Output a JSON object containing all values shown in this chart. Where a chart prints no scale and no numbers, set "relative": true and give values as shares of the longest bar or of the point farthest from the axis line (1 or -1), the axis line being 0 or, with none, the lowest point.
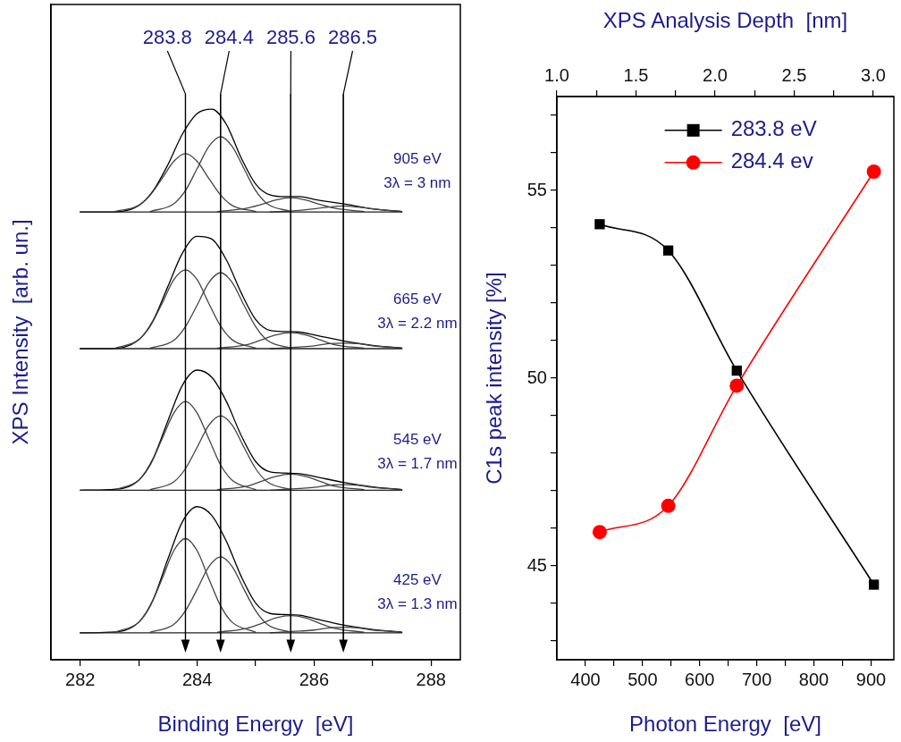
{
  "chart_data": [
    {
      "type": "line",
      "relative": true,
      "tick_labels": "x",
      "xlabel": "Binding Energy  [eV]",
      "ylabel": "XPS Intensity  [arb. un.]",
      "xlim": [
        281.5,
        288.5
      ],
      "xticks": [
        282,
        {
          "value": 283,
          "label": null
        },
        284,
        {
          "value": 285,
          "label": null
        },
        286,
        {
          "value": 287,
          "label": null
        },
        288
      ],
      "ref_lines": [
        {
          "axis": "x",
          "value": 283.8,
          "label": "283.8"
        },
        {
          "axis": "x",
          "value": 284.4,
          "label": "284.4"
        },
        {
          "axis": "x",
          "value": 285.6,
          "label": "285.6"
        },
        {
          "axis": "x",
          "value": 286.5,
          "label": "286.5"
        }
      ],
      "annotations": [
        "905 eV\n3λ = 3 nm",
        "665 eV\n3λ = 2.2 nm",
        "545 eV\n3λ = 1.7 nm",
        "425 eV\n3λ = 1.3 nm"
      ],
      "series": [
        {
          "color": "#222222",
          "x": [
            282.0,
            287.5
          ],
          "values": [
            0.813,
            0.813
          ]
        },
        {
          "color": "#444444",
          "x": [
            282.6,
            283.0,
            283.2,
            283.4,
            283.6,
            283.8,
            284.0,
            284.2,
            284.4,
            284.6,
            285.0
          ],
          "values": [
            0.814,
            0.825,
            0.844,
            0.874,
            0.905,
            0.919,
            0.905,
            0.874,
            0.844,
            0.825,
            0.814
          ]
        },
        {
          "color": "#444444",
          "x": [
            283.2,
            283.6,
            283.8,
            284.0,
            284.2,
            284.4,
            284.6,
            284.8,
            285.0,
            285.2,
            285.6
          ],
          "values": [
            0.814,
            0.828,
            0.852,
            0.892,
            0.932,
            0.95,
            0.932,
            0.892,
            0.852,
            0.828,
            0.814
          ]
        },
        {
          "color": "#444444",
          "x": [
            284.35,
            284.85,
            285.1,
            285.35,
            285.6,
            285.85,
            286.1,
            286.35,
            286.85
          ],
          "values": [
            0.814,
            0.82,
            0.827,
            0.835,
            0.839,
            0.835,
            0.827,
            0.82,
            0.814
          ]
        },
        {
          "color": "#444444",
          "x": [
            285.25,
            285.75,
            286.0,
            286.25,
            286.5,
            286.75,
            287.0,
            287.25,
            287.5
          ],
          "values": [
            0.813,
            0.816,
            0.819,
            0.822,
            0.824,
            0.822,
            0.819,
            0.816,
            0.814
          ]
        },
        {
          "color": "#000000",
          "x": [
            282.0,
            282.5,
            283.0,
            283.25,
            283.5,
            283.75,
            284.0,
            284.25,
            284.5,
            284.75,
            285.0,
            285.25,
            285.5,
            285.75,
            286.0,
            286.5,
            287.0,
            287.5
          ],
          "values": [
            0.813,
            0.813,
            0.825,
            0.852,
            0.899,
            0.955,
            0.992,
            1.0,
            0.972,
            0.912,
            0.864,
            0.844,
            0.841,
            0.841,
            0.836,
            0.828,
            0.819,
            0.814
          ]
        },
        {
          "color": "#222222",
          "x": [
            282.0,
            287.5
          ],
          "values": [
            0.565,
            0.565
          ]
        },
        {
          "color": "#444444",
          "x": [
            282.6,
            283.0,
            283.2,
            283.4,
            283.6,
            283.8,
            284.0,
            284.2,
            284.4,
            284.6,
            285.0
          ],
          "values": [
            0.566,
            0.581,
            0.606,
            0.647,
            0.69,
            0.708,
            0.69,
            0.647,
            0.606,
            0.581,
            0.566
          ]
        },
        {
          "color": "#444444",
          "x": [
            283.2,
            283.6,
            283.8,
            284.0,
            284.2,
            284.4,
            284.6,
            284.8,
            285.0,
            285.2,
            285.6
          ],
          "values": [
            0.566,
            0.58,
            0.605,
            0.644,
            0.685,
            0.703,
            0.685,
            0.644,
            0.605,
            0.58,
            0.566
          ]
        },
        {
          "color": "#444444",
          "x": [
            284.35,
            284.85,
            285.1,
            285.35,
            285.6,
            285.85,
            286.1,
            286.35,
            286.85
          ],
          "values": [
            0.566,
            0.572,
            0.581,
            0.59,
            0.594,
            0.59,
            0.581,
            0.572,
            0.566
          ]
        },
        {
          "color": "#444444",
          "x": [
            285.25,
            285.75,
            286.0,
            286.25,
            286.5,
            286.75,
            287.0,
            287.25,
            287.5
          ],
          "values": [
            0.565,
            0.568,
            0.57,
            0.574,
            0.575,
            0.574,
            0.57,
            0.568,
            0.566
          ]
        },
        {
          "color": "#000000",
          "x": [
            282.0,
            282.5,
            283.0,
            283.25,
            283.5,
            283.75,
            284.0,
            284.25,
            284.5,
            284.75,
            285.0,
            285.25,
            285.5,
            285.75,
            286.0,
            286.5,
            287.0,
            287.5
          ],
          "values": [
            0.565,
            0.565,
            0.581,
            0.617,
            0.678,
            0.739,
            0.769,
            0.764,
            0.726,
            0.667,
            0.618,
            0.598,
            0.596,
            0.595,
            0.59,
            0.579,
            0.571,
            0.566
          ]
        },
        {
          "color": "#222222",
          "x": [
            282.0,
            287.5
          ],
          "values": [
            0.308,
            0.308
          ]
        },
        {
          "color": "#444444",
          "x": [
            282.6,
            283.0,
            283.2,
            283.4,
            283.6,
            283.8,
            284.0,
            284.2,
            284.4,
            284.6,
            285.0
          ],
          "values": [
            0.309,
            0.326,
            0.354,
            0.401,
            0.448,
            0.469,
            0.448,
            0.401,
            0.354,
            0.326,
            0.309
          ]
        },
        {
          "color": "#444444",
          "x": [
            283.2,
            283.6,
            283.8,
            284.0,
            284.2,
            284.4,
            284.6,
            284.8,
            285.0,
            285.2,
            285.6
          ],
          "values": [
            0.309,
            0.323,
            0.347,
            0.386,
            0.426,
            0.443,
            0.426,
            0.386,
            0.347,
            0.323,
            0.309
          ]
        },
        {
          "color": "#444444",
          "x": [
            284.35,
            284.85,
            285.1,
            285.35,
            285.6,
            285.85,
            286.1,
            286.35,
            286.85
          ],
          "values": [
            0.309,
            0.315,
            0.324,
            0.333,
            0.337,
            0.333,
            0.324,
            0.315,
            0.309
          ]
        },
        {
          "color": "#444444",
          "x": [
            285.25,
            285.75,
            286.0,
            286.25,
            286.5,
            286.75,
            287.0,
            287.25,
            287.5
          ],
          "values": [
            0.308,
            0.311,
            0.313,
            0.317,
            0.318,
            0.317,
            0.313,
            0.311,
            0.309
          ]
        },
        {
          "color": "#000000",
          "x": [
            282.0,
            282.5,
            283.0,
            283.25,
            283.5,
            283.75,
            284.0,
            284.25,
            284.5,
            284.75,
            285.0,
            285.25,
            285.5,
            285.75,
            286.0,
            286.5,
            287.0,
            287.5
          ],
          "values": [
            0.308,
            0.309,
            0.326,
            0.366,
            0.434,
            0.499,
            0.526,
            0.513,
            0.469,
            0.408,
            0.36,
            0.341,
            0.339,
            0.338,
            0.333,
            0.322,
            0.314,
            0.309
          ]
        },
        {
          "color": "#222222",
          "x": [
            282.0,
            287.5
          ],
          "values": [
            0.049,
            0.049
          ]
        },
        {
          "color": "#444444",
          "x": [
            282.6,
            283.0,
            283.2,
            283.4,
            283.6,
            283.8,
            284.0,
            284.2,
            284.4,
            284.6,
            285.0
          ],
          "values": [
            0.05,
            0.068,
            0.098,
            0.147,
            0.198,
            0.22,
            0.198,
            0.147,
            0.098,
            0.068,
            0.05
          ]
        },
        {
          "color": "#444444",
          "x": [
            283.2,
            283.6,
            283.8,
            284.0,
            284.2,
            284.4,
            284.6,
            284.8,
            285.0,
            285.2,
            285.6
          ],
          "values": [
            0.05,
            0.064,
            0.089,
            0.128,
            0.169,
            0.187,
            0.169,
            0.128,
            0.089,
            0.064,
            0.05
          ]
        },
        {
          "color": "#444444",
          "x": [
            284.35,
            284.85,
            285.1,
            285.35,
            285.6,
            285.85,
            286.1,
            286.35,
            286.85
          ],
          "values": [
            0.05,
            0.057,
            0.066,
            0.076,
            0.08,
            0.076,
            0.066,
            0.057,
            0.05
          ]
        },
        {
          "color": "#444444",
          "x": [
            285.25,
            285.75,
            286.0,
            286.25,
            286.5,
            286.75,
            287.0,
            287.25,
            287.5
          ],
          "values": [
            0.049,
            0.052,
            0.054,
            0.058,
            0.059,
            0.058,
            0.054,
            0.052,
            0.05
          ]
        },
        {
          "color": "#000000",
          "x": [
            282.0,
            282.5,
            283.0,
            283.25,
            283.5,
            283.75,
            284.0,
            284.25,
            284.5,
            284.75,
            285.0,
            285.25,
            285.5,
            285.75,
            286.0,
            286.5,
            287.0,
            287.5
          ],
          "values": [
            0.049,
            0.05,
            0.068,
            0.11,
            0.183,
            0.251,
            0.278,
            0.262,
            0.215,
            0.152,
            0.103,
            0.084,
            0.082,
            0.081,
            0.075,
            0.063,
            0.055,
            0.05
          ]
        }
      ]
    },
    {
      "type": "line",
      "xlabel": "Photon Energy  [eV]",
      "ylabel": "C1s peak intensity [%]",
      "x2label": "XPS Analysis Depth  [nm]",
      "legend": "top",
      "x": [
        425,
        545,
        665,
        905
      ],
      "xlim": [
        350,
        940
      ],
      "xticks": [
        400,
        {
          "value": 450,
          "label": null
        },
        500,
        {
          "value": 550,
          "label": null
        },
        600,
        {
          "value": 650,
          "label": null
        },
        700,
        {
          "value": 750,
          "label": null
        },
        800,
        {
          "value": 850,
          "label": null
        },
        900
      ],
      "x2lim": [
        1.0,
        3.13
      ],
      "x2ticks": [
        {
          "value": 1,
          "label": "1.0"
        },
        {
          "value": 1.25,
          "label": null
        },
        {
          "value": 1.5,
          "label": "1.5"
        },
        {
          "value": 1.75,
          "label": null
        },
        {
          "value": 2,
          "label": "2.0"
        },
        {
          "value": 2.25,
          "label": null
        },
        {
          "value": 2.5,
          "label": "2.5"
        },
        {
          "value": 2.75,
          "label": null
        },
        {
          "value": 3,
          "label": "3.0"
        }
      ],
      "ylim": [
        42.5,
        57.5
      ],
      "yticks": [
        {
          "value": 43,
          "label": null
        },
        {
          "value": 44,
          "label": null
        },
        45,
        {
          "value": 46,
          "label": null
        },
        {
          "value": 47,
          "label": null
        },
        {
          "value": 48,
          "label": null
        },
        {
          "value": 49,
          "label": null
        },
        50,
        {
          "value": 51,
          "label": null
        },
        {
          "value": 52,
          "label": null
        },
        {
          "value": 53,
          "label": null
        },
        {
          "value": 54,
          "label": null
        },
        55,
        {
          "value": 56,
          "label": null
        },
        {
          "value": 57,
          "label": null
        }
      ],
      "series": [
        {
          "name": "283.8 eV",
          "color": "#000000",
          "marker": "square",
          "values": [
            54.1,
            53.4,
            50.2,
            44.5
          ]
        },
        {
          "name": "284.4 ev",
          "color": "#ff0000",
          "marker": "circle",
          "values": [
            45.9,
            46.6,
            49.8,
            55.5
          ]
        }
      ]
    }
  ]
}
